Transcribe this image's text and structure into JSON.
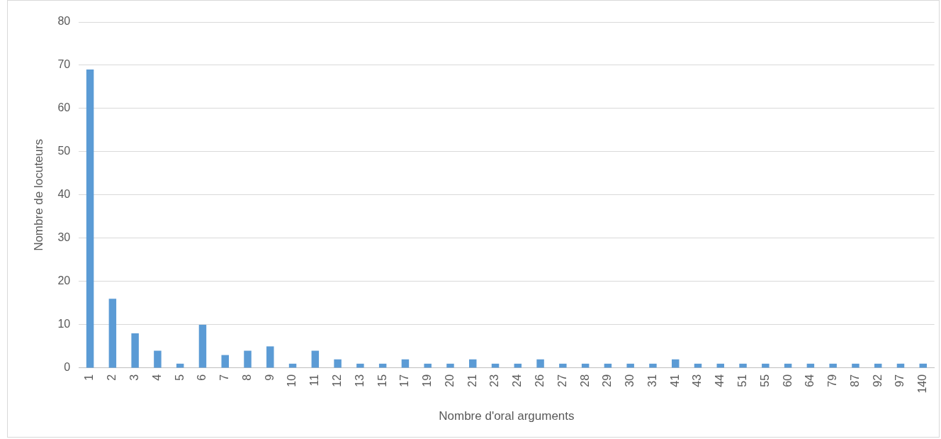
{
  "chart_data": {
    "type": "bar",
    "xlabel": "Nombre d'oral arguments",
    "ylabel": "Nombre de locuteurs",
    "categories": [
      "1",
      "2",
      "3",
      "4",
      "5",
      "6",
      "7",
      "8",
      "9",
      "10",
      "11",
      "12",
      "13",
      "15",
      "17",
      "19",
      "20",
      "21",
      "23",
      "24",
      "26",
      "27",
      "28",
      "29",
      "30",
      "31",
      "41",
      "43",
      "44",
      "51",
      "55",
      "60",
      "64",
      "79",
      "87",
      "92",
      "97",
      "140"
    ],
    "values": [
      69,
      16,
      8,
      4,
      1,
      10,
      3,
      4,
      5,
      1,
      4,
      2,
      1,
      1,
      2,
      1,
      1,
      2,
      1,
      1,
      2,
      1,
      1,
      1,
      1,
      1,
      2,
      1,
      1,
      1,
      1,
      1,
      1,
      1,
      1,
      1,
      1,
      1
    ],
    "color": "#5b9bd5",
    "ylim": [
      0,
      80
    ],
    "yticks": [
      0,
      10,
      20,
      30,
      40,
      50,
      60,
      70,
      80
    ],
    "grid": "y",
    "legend": false
  }
}
